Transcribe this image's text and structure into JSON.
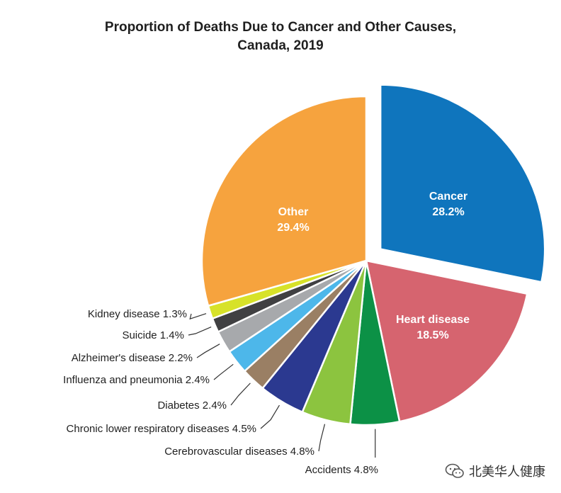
{
  "chart_data": {
    "type": "pie",
    "title_lines": [
      "Proportion of Deaths Due to Cancer and Other Causes,",
      "Canada, 2019"
    ],
    "slices": [
      {
        "label": "Cancer",
        "value": 28.2,
        "display": "28.2%",
        "color": "#0f75bd",
        "exploded": true,
        "label_inside": true
      },
      {
        "label": "Heart disease",
        "value": 18.5,
        "display": "18.5%",
        "color": "#d6646f",
        "exploded": false,
        "label_inside": true
      },
      {
        "label": "Accidents",
        "value": 4.8,
        "display": "4.8%",
        "color": "#0c9146",
        "exploded": false,
        "label_inside": false
      },
      {
        "label": "Cerebrovascular diseases",
        "value": 4.8,
        "display": "4.8%",
        "color": "#8cc43f",
        "exploded": false,
        "label_inside": false
      },
      {
        "label": "Chronic lower respiratory diseases",
        "value": 4.5,
        "display": "4.5%",
        "color": "#2b3990",
        "exploded": false,
        "label_inside": false
      },
      {
        "label": "Diabetes",
        "value": 2.4,
        "display": "2.4%",
        "color": "#9a7f64",
        "exploded": false,
        "label_inside": false
      },
      {
        "label": "Influenza and pneumonia",
        "value": 2.4,
        "display": "2.4%",
        "color": "#4db7ea",
        "exploded": false,
        "label_inside": false
      },
      {
        "label": "Alzheimer's disease",
        "value": 2.2,
        "display": "2.2%",
        "color": "#a7a9ac",
        "exploded": false,
        "label_inside": false
      },
      {
        "label": "Suicide",
        "value": 1.4,
        "display": "1.4%",
        "color": "#404042",
        "exploded": false,
        "label_inside": false
      },
      {
        "label": "Kidney disease",
        "value": 1.3,
        "display": "1.3%",
        "color": "#d7e229",
        "exploded": false,
        "label_inside": false
      },
      {
        "label": "Other",
        "value": 29.4,
        "display": "29.4%",
        "color": "#f6a33e",
        "exploded": false,
        "label_inside": true
      }
    ]
  },
  "watermark": {
    "text": "北美华人健康",
    "icon": "wechat-icon"
  }
}
